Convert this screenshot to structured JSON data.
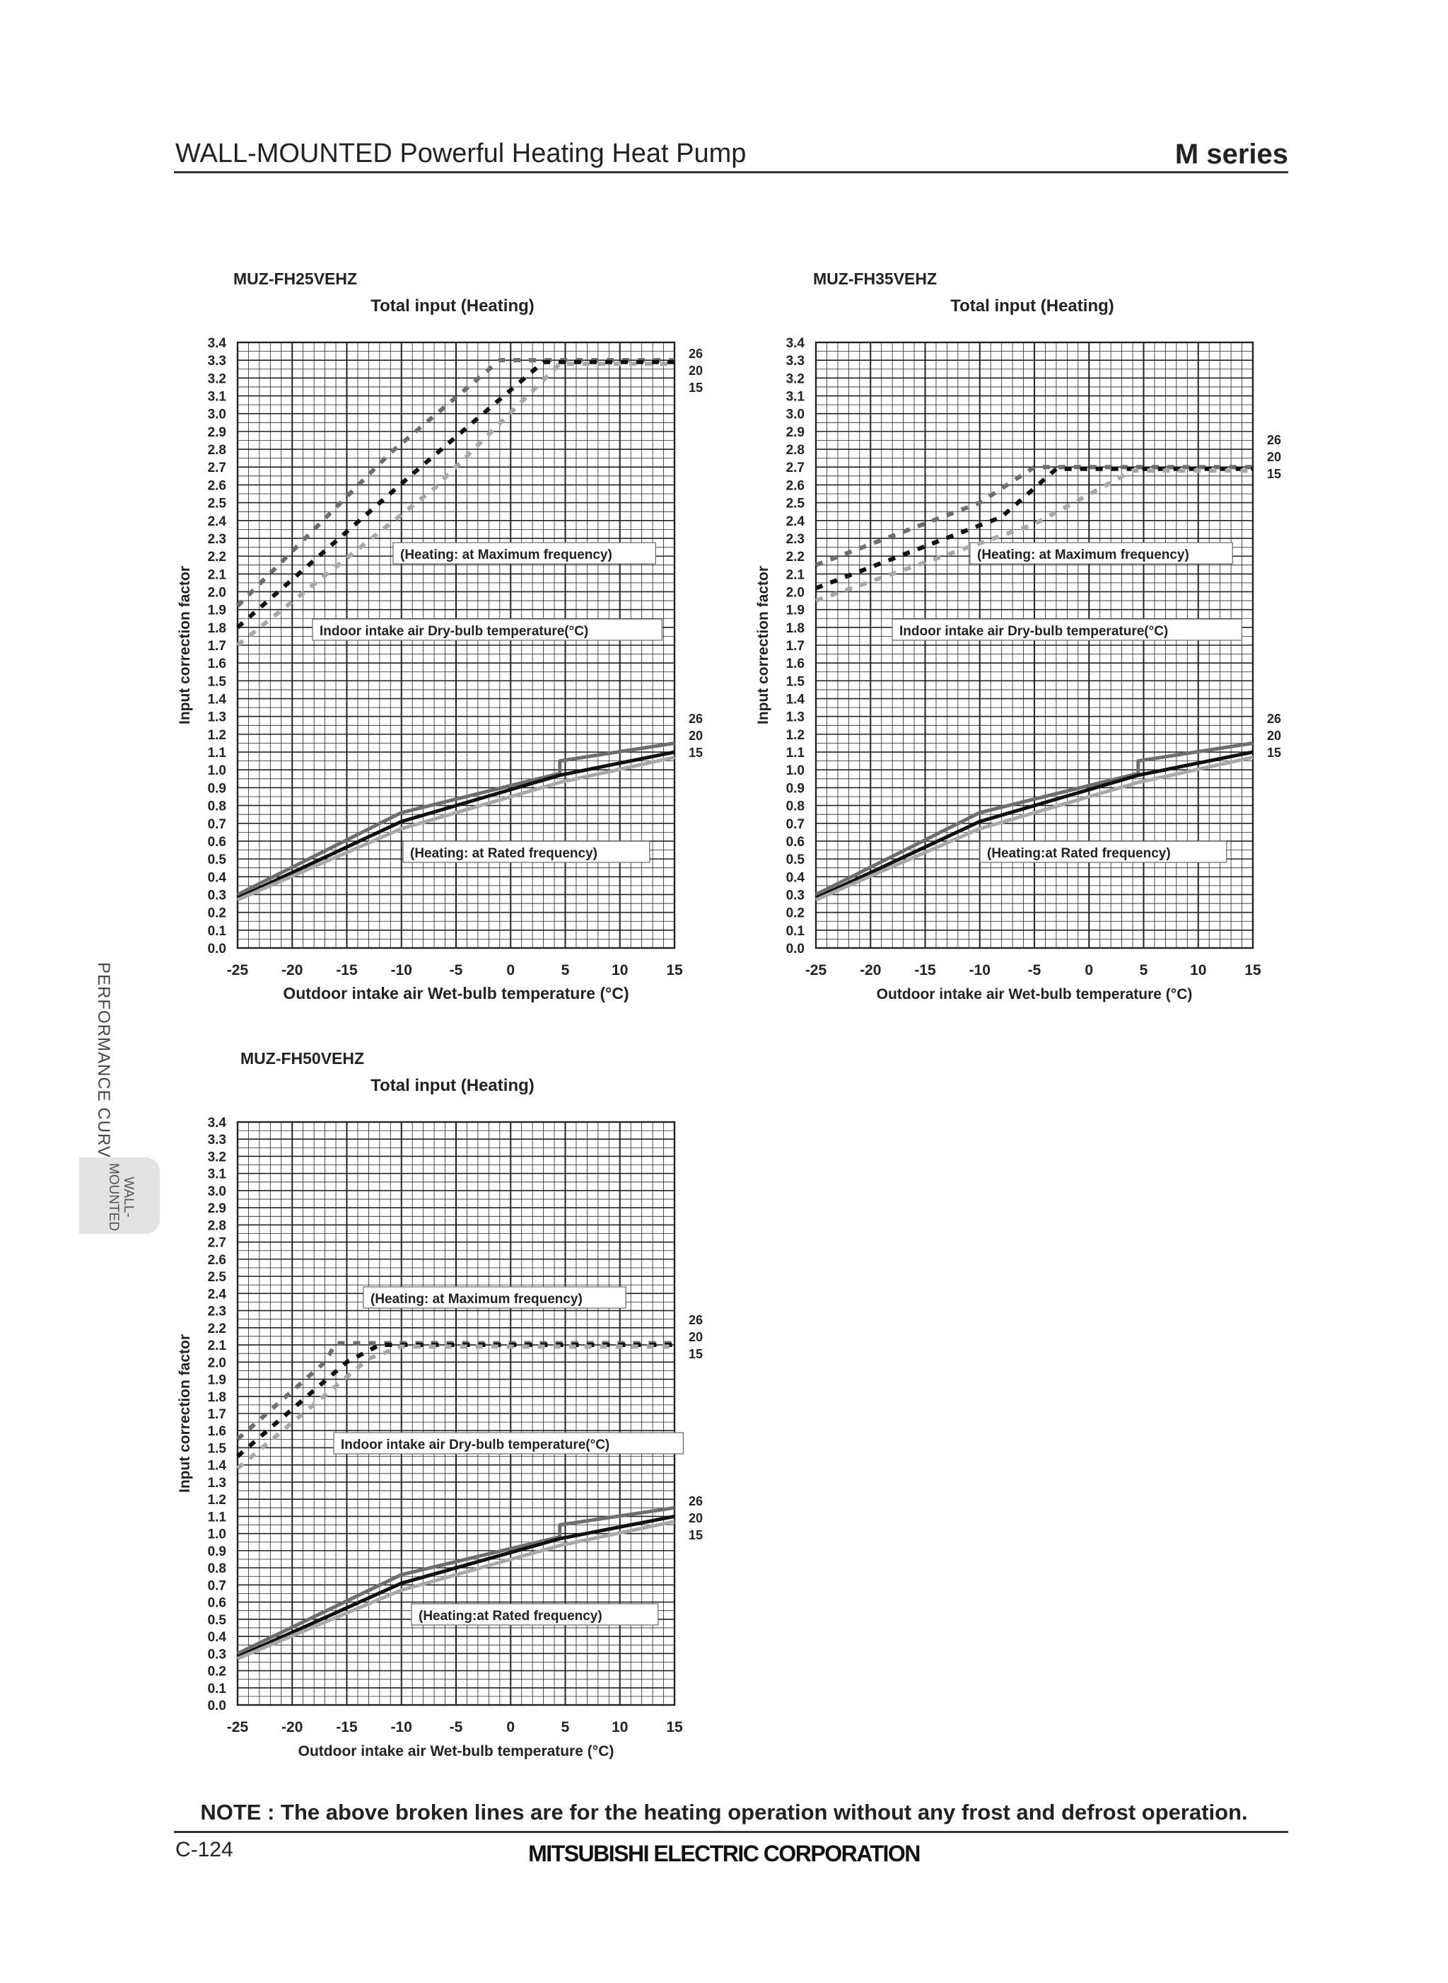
{
  "header": {
    "title": "WALL-MOUNTED Powerful Heating Heat Pump",
    "series": "M series"
  },
  "side_tab": {
    "section": "PERFORMANCE CURVES",
    "tab": "WALL-\nMOUNTED"
  },
  "note": "NOTE : The above broken lines are for the heating operation without any frost and defrost operation.",
  "footer": {
    "page": "C-124",
    "company": "MITSUBISHI ELECTRIC CORPORATION"
  },
  "colors": {
    "grid": "#222222",
    "series26": "#6e6e6e",
    "series20": "#111111",
    "series15": "#a8a8a8"
  },
  "chart_data": [
    {
      "type": "line",
      "model": "MUZ-FH25VEHZ",
      "title": "Total input (Heating)",
      "xlabel": "Outdoor intake air Wet-bulb temperature (°C)",
      "ylabel": "Input correction factor",
      "xlim": [
        -25,
        15
      ],
      "ylim": [
        0.0,
        3.4
      ],
      "xticks": [
        "-25",
        "-20",
        "-15",
        "-10",
        "-5",
        "0",
        "5",
        "10",
        "15"
      ],
      "yticks": [
        "0.0",
        "0.1",
        "0.2",
        "0.3",
        "0.4",
        "0.5",
        "0.6",
        "0.7",
        "0.8",
        "0.9",
        "1.0",
        "1.1",
        "1.2",
        "1.3",
        "1.4",
        "1.5",
        "1.6",
        "1.7",
        "1.8",
        "1.9",
        "2.0",
        "2.1",
        "2.2",
        "2.3",
        "2.4",
        "2.5",
        "2.6",
        "2.7",
        "2.8",
        "2.9",
        "3.0",
        "3.1",
        "3.2",
        "3.3",
        "3.4"
      ],
      "annotations": {
        "max": "(Heating: at Maximum frequency)",
        "legend": "Indoor intake air Dry-bulb temperature(°C)",
        "rated": "(Heating: at Rated frequency)"
      },
      "end_labels": {
        "max": [
          "26",
          "20",
          "15"
        ],
        "rated": [
          "26",
          "20",
          "15"
        ]
      },
      "max_series": [
        {
          "name": "26",
          "x": [
            -25,
            -11,
            -1,
            15
          ],
          "y": [
            1.92,
            2.78,
            3.3,
            3.3
          ]
        },
        {
          "name": "20",
          "x": [
            -25,
            -9,
            3,
            15
          ],
          "y": [
            1.8,
            2.66,
            3.29,
            3.29
          ]
        },
        {
          "name": "15",
          "x": [
            -25,
            -7,
            4.5,
            15
          ],
          "y": [
            1.7,
            2.58,
            3.28,
            3.28
          ]
        }
      ],
      "rated_series": [
        {
          "name": "26",
          "x": [
            -25,
            -10,
            4.5,
            4.5,
            15
          ],
          "y": [
            0.3,
            0.76,
            0.98,
            1.05,
            1.15
          ]
        },
        {
          "name": "20",
          "x": [
            -25,
            -10,
            4.5,
            15
          ],
          "y": [
            0.28,
            0.71,
            0.97,
            1.1
          ]
        },
        {
          "name": "15",
          "x": [
            -25,
            -10,
            4.5,
            15
          ],
          "y": [
            0.27,
            0.67,
            0.93,
            1.07
          ]
        }
      ]
    },
    {
      "type": "line",
      "model": "MUZ-FH35VEHZ",
      "title": "Total input (Heating)",
      "xlabel": "Outdoor intake air Wet-bulb temperature (°C)",
      "ylabel": "Input correction factor",
      "xlim": [
        -25,
        15
      ],
      "ylim": [
        0.0,
        3.4
      ],
      "xticks": [
        "-25",
        "-20",
        "-15",
        "-10",
        "-5",
        "0",
        "5",
        "10",
        "15"
      ],
      "yticks": [
        "0.0",
        "0.1",
        "0.2",
        "0.3",
        "0.4",
        "0.5",
        "0.6",
        "0.7",
        "0.8",
        "0.9",
        "1.0",
        "1.1",
        "1.2",
        "1.3",
        "1.4",
        "1.5",
        "1.6",
        "1.7",
        "1.8",
        "1.9",
        "2.0",
        "2.1",
        "2.2",
        "2.3",
        "2.4",
        "2.5",
        "2.6",
        "2.7",
        "2.8",
        "2.9",
        "3.0",
        "3.1",
        "3.2",
        "3.3",
        "3.4"
      ],
      "annotations": {
        "max": "(Heating: at Maximum frequency)",
        "legend": "Indoor intake air Dry-bulb temperature(°C)",
        "rated": "(Heating:at  Rated frequency)"
      },
      "end_labels": {
        "max": [
          "26",
          "20",
          "15"
        ],
        "rated": [
          "26",
          "20",
          "15"
        ]
      },
      "max_series": [
        {
          "name": "26",
          "x": [
            -25,
            -10,
            -5,
            15
          ],
          "y": [
            2.15,
            2.5,
            2.7,
            2.7
          ]
        },
        {
          "name": "20",
          "x": [
            -25,
            -8,
            -3,
            15
          ],
          "y": [
            2.02,
            2.42,
            2.69,
            2.69
          ]
        },
        {
          "name": "15",
          "x": [
            -25,
            -5,
            4,
            15
          ],
          "y": [
            1.95,
            2.38,
            2.68,
            2.68
          ]
        }
      ],
      "rated_series": [
        {
          "name": "26",
          "x": [
            -25,
            -10,
            4.5,
            4.5,
            15
          ],
          "y": [
            0.3,
            0.76,
            0.98,
            1.05,
            1.15
          ]
        },
        {
          "name": "20",
          "x": [
            -25,
            -10,
            4.5,
            15
          ],
          "y": [
            0.28,
            0.71,
            0.97,
            1.1
          ]
        },
        {
          "name": "15",
          "x": [
            -25,
            -10,
            4.5,
            15
          ],
          "y": [
            0.27,
            0.67,
            0.93,
            1.07
          ]
        }
      ]
    },
    {
      "type": "line",
      "model": "MUZ-FH50VEHZ",
      "title": "Total input (Heating)",
      "xlabel": "Outdoor intake air Wet-bulb temperature (°C)",
      "ylabel": "Input correction factor",
      "xlim": [
        -25,
        15
      ],
      "ylim": [
        0.0,
        3.4
      ],
      "xticks": [
        "-25",
        "-20",
        "-15",
        "-10",
        "-5",
        "0",
        "5",
        "10",
        "15"
      ],
      "yticks": [
        "0.0",
        "0.1",
        "0.2",
        "0.3",
        "0.4",
        "0.5",
        "0.6",
        "0.7",
        "0.8",
        "0.9",
        "1.0",
        "1.1",
        "1.2",
        "1.3",
        "1.4",
        "1.5",
        "1.6",
        "1.7",
        "1.8",
        "1.9",
        "2.0",
        "2.1",
        "2.2",
        "2.3",
        "2.4",
        "2.5",
        "2.6",
        "2.7",
        "2.8",
        "2.9",
        "3.0",
        "3.1",
        "3.2",
        "3.3",
        "3.4"
      ],
      "annotations": {
        "max": "(Heating: at Maximum frequency)",
        "legend": "Indoor intake air Dry-bulb temperature(°C)",
        "rated": "(Heating:at  Rated frequency)"
      },
      "end_labels": {
        "max": [
          "26",
          "20",
          "15"
        ],
        "rated": [
          "26",
          "20",
          "15"
        ]
      },
      "max_series": [
        {
          "name": "26",
          "x": [
            -25,
            -17,
            -16,
            15
          ],
          "y": [
            1.55,
            2.0,
            2.11,
            2.11
          ]
        },
        {
          "name": "20",
          "x": [
            -25,
            -15,
            -12,
            15
          ],
          "y": [
            1.45,
            2.0,
            2.1,
            2.1
          ]
        },
        {
          "name": "15",
          "x": [
            -25,
            -13,
            -10,
            15
          ],
          "y": [
            1.38,
            2.02,
            2.09,
            2.09
          ]
        }
      ],
      "rated_series": [
        {
          "name": "26",
          "x": [
            -25,
            -10,
            4.5,
            4.5,
            15
          ],
          "y": [
            0.3,
            0.76,
            0.98,
            1.05,
            1.15
          ]
        },
        {
          "name": "20",
          "x": [
            -25,
            -10,
            4.5,
            15
          ],
          "y": [
            0.28,
            0.71,
            0.97,
            1.1
          ]
        },
        {
          "name": "15",
          "x": [
            -25,
            -10,
            4.5,
            15
          ],
          "y": [
            0.27,
            0.67,
            0.93,
            1.07
          ]
        }
      ]
    }
  ]
}
